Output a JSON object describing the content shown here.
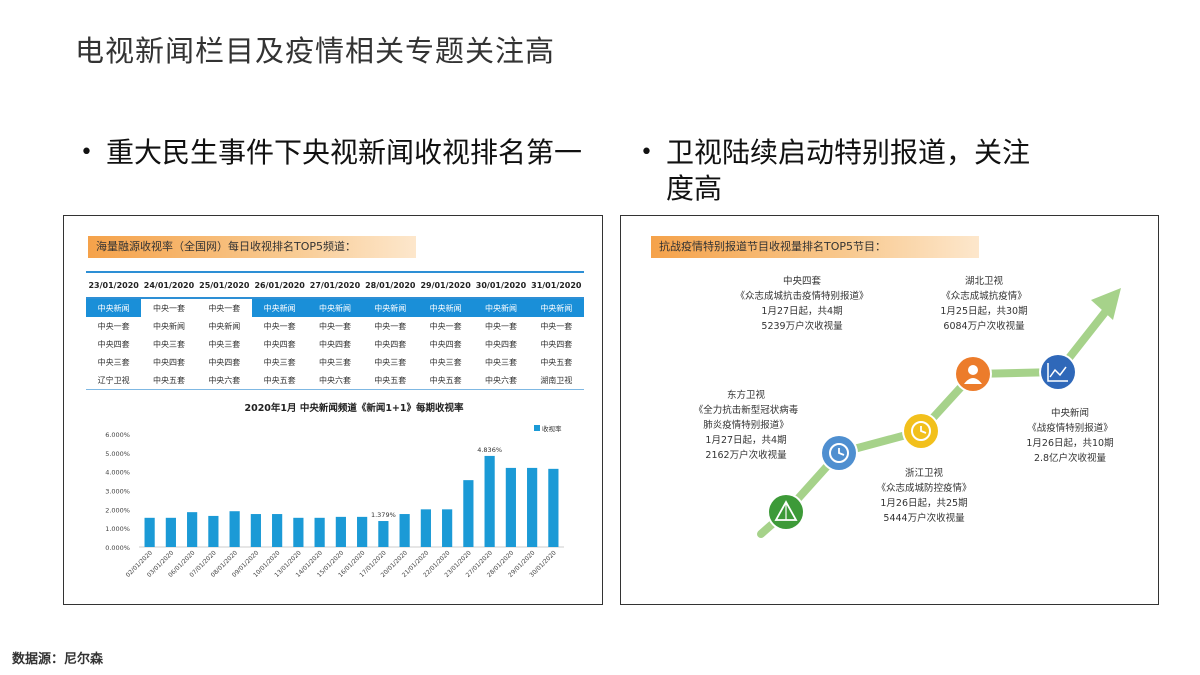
{
  "page": {
    "title": "电视新闻栏目及疫情相关专题关注高",
    "bullet_left": "重大民生事件下央视新闻收视排名第一",
    "bullet_right": "卫视陆续启动特别报道，关注度高",
    "source": "数据源：尼尔森"
  },
  "left_panel": {
    "banner": "海量融源收视率（全国网）每日收视排名TOP5频道：",
    "ranking": {
      "dates": [
        "23/01/2020",
        "24/01/2020",
        "25/01/2020",
        "26/01/2020",
        "27/01/2020",
        "28/01/2020",
        "29/01/2020",
        "30/01/2020",
        "31/01/2020"
      ],
      "rows": [
        [
          "中央新闻",
          "中央一套",
          "中央一套",
          "中央新闻",
          "中央新闻",
          "中央新闻",
          "中央新闻",
          "中央新闻",
          "中央新闻"
        ],
        [
          "中央一套",
          "中央新闻",
          "中央新闻",
          "中央一套",
          "中央一套",
          "中央一套",
          "中央一套",
          "中央一套",
          "中央一套"
        ],
        [
          "中央四套",
          "中央三套",
          "中央三套",
          "中央四套",
          "中央四套",
          "中央四套",
          "中央四套",
          "中央四套",
          "中央四套"
        ],
        [
          "中央三套",
          "中央四套",
          "中央四套",
          "中央三套",
          "中央三套",
          "中央三套",
          "中央三套",
          "中央三套",
          "中央五套"
        ],
        [
          "辽宁卫视",
          "中央五套",
          "中央六套",
          "中央五套",
          "中央六套",
          "中央五套",
          "中央五套",
          "中央六套",
          "湖南卫视"
        ]
      ],
      "top_highlight": [
        true,
        false,
        false,
        true,
        true,
        true,
        true,
        true,
        true
      ]
    }
  },
  "chart_data": {
    "type": "bar",
    "title": "2020年1月   中央新闻频道《新闻1+1》每期收视率",
    "legend": "收视率",
    "legend_position": "top-right",
    "color": "#1b9ad6",
    "categories": [
      "02/01/2020",
      "03/01/2020",
      "06/01/2020",
      "07/01/2020",
      "08/01/2020",
      "09/01/2020",
      "10/01/2020",
      "13/01/2020",
      "14/01/2020",
      "15/01/2020",
      "16/01/2020",
      "17/01/2020",
      "20/01/2020",
      "21/01/2020",
      "22/01/2020",
      "23/01/2020",
      "27/01/2020",
      "28/01/2020",
      "29/01/2020",
      "30/01/2020"
    ],
    "values": [
      1.55,
      1.55,
      1.85,
      1.65,
      1.9,
      1.75,
      1.75,
      1.55,
      1.55,
      1.6,
      1.6,
      1.379,
      1.75,
      2.0,
      2.0,
      3.55,
      4.836,
      4.2,
      4.2,
      4.15
    ],
    "labels": {
      "11": "1.379%",
      "16": "4.836%"
    },
    "ylim": [
      0,
      6
    ],
    "yticks": [
      "0.000%",
      "1.000%",
      "2.000%",
      "3.000%",
      "4.000%",
      "5.000%",
      "6.000%"
    ],
    "grid": false
  },
  "right_panel": {
    "banner": "抗战疫情特别报道节目收视量排名TOP5节目：",
    "steps": [
      {
        "channel": "东方卫视",
        "program": "《全力抗击新型冠状病毒",
        "program2": "肺炎疫情特别报道》",
        "start": "1月27日起，共4期",
        "views": "2162万户次收视量",
        "color": "#3d9a38",
        "icon": "triangle-logo-icon"
      },
      {
        "channel": "中央四套",
        "program": "《众志成城抗击疫情特别报道》",
        "program2": "",
        "start": "1月27日起，共4期",
        "views": "5239万户次收视量",
        "color": "#4f8fd0",
        "icon": "clock-icon"
      },
      {
        "channel": "浙江卫视",
        "program": "《众志成城防控疫情》",
        "program2": "",
        "start": "1月26日起，共25期",
        "views": "5444万户次收视量",
        "color": "#f2c01c",
        "icon": "clock-icon"
      },
      {
        "channel": "湖北卫视",
        "program": "《众志成城抗疫情》",
        "program2": "",
        "start": "1月25日起，共30期",
        "views": "6084万户次收视量",
        "color": "#ec7c2b",
        "icon": "person-icon"
      },
      {
        "channel": "中央新闻",
        "program": "《战疫情特别报道》",
        "program2": "",
        "start": "1月26日起，共10期",
        "views": "2.8亿户次收视量",
        "color": "#2f68b9",
        "icon": "chart-icon"
      }
    ]
  }
}
